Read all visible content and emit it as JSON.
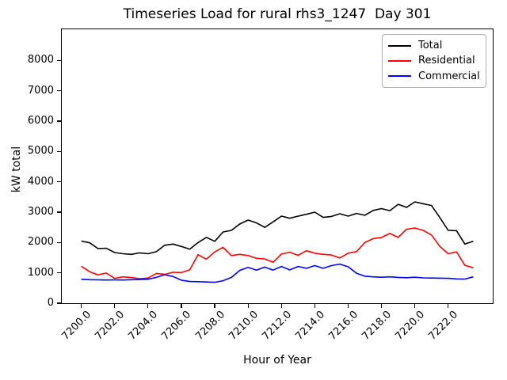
{
  "title": "Timeseries Load for rural rhs3_1247  Day 301",
  "chart_data": {
    "type": "line",
    "title": "Timeseries Load for rural rhs3_1247  Day 301",
    "x_label": "Hour of Year",
    "y_label": "kW total",
    "grid": false,
    "legend_position": "upper right",
    "xlim": [
      7198.83,
      7224.67
    ],
    "ylim": [
      0,
      9030
    ],
    "x_ticks": {
      "values": [
        7200,
        7202,
        7204,
        7206,
        7208,
        7210,
        7212,
        7214,
        7216,
        7218,
        7220,
        7222
      ],
      "labels": [
        "7200.0",
        "7202.0",
        "7204.0",
        "7206.0",
        "7208.0",
        "7210.0",
        "7212.0",
        "7214.0",
        "7216.0",
        "7218.0",
        "7220.0",
        "7222.0"
      ]
    },
    "y_ticks": {
      "values": [
        0,
        1000,
        2000,
        3000,
        4000,
        5000,
        6000,
        7000,
        8000
      ],
      "labels": [
        "0",
        "1000",
        "2000",
        "3000",
        "4000",
        "5000",
        "6000",
        "7000",
        "8000"
      ]
    },
    "x": [
      7200.0,
      7200.5,
      7201.0,
      7201.5,
      7202.0,
      7202.5,
      7203.0,
      7203.5,
      7204.0,
      7204.5,
      7205.0,
      7205.5,
      7206.0,
      7206.5,
      7207.0,
      7207.5,
      7208.0,
      7208.5,
      7209.0,
      7209.5,
      7210.0,
      7210.5,
      7211.0,
      7211.5,
      7212.0,
      7212.5,
      7213.0,
      7213.5,
      7214.0,
      7214.5,
      7215.0,
      7215.5,
      7216.0,
      7216.5,
      7217.0,
      7217.5,
      7218.0,
      7218.5,
      7219.0,
      7219.5,
      7220.0,
      7220.5,
      7221.0,
      7221.5,
      7222.0,
      7222.5,
      7223.0,
      7223.5
    ],
    "series": [
      {
        "name": "Total",
        "color": "#000000",
        "values": [
          2050,
          1990,
          1800,
          1810,
          1670,
          1630,
          1610,
          1660,
          1630,
          1700,
          1910,
          1950,
          1870,
          1780,
          2000,
          2170,
          2040,
          2350,
          2400,
          2610,
          2740,
          2650,
          2500,
          2680,
          2870,
          2800,
          2870,
          2930,
          3000,
          2830,
          2860,
          2950,
          2870,
          2960,
          2900,
          3060,
          3120,
          3050,
          3260,
          3160,
          3340,
          3280,
          3220,
          2820,
          2400,
          2390,
          1950,
          2040
        ]
      },
      {
        "name": "Residential",
        "color": "#ff0000",
        "values": [
          1220,
          1040,
          935,
          995,
          820,
          870,
          845,
          810,
          830,
          980,
          950,
          1020,
          1010,
          1100,
          1600,
          1450,
          1690,
          1840,
          1570,
          1610,
          1570,
          1480,
          1460,
          1350,
          1620,
          1680,
          1580,
          1730,
          1650,
          1610,
          1590,
          1490,
          1650,
          1700,
          2000,
          2130,
          2170,
          2300,
          2170,
          2440,
          2480,
          2400,
          2250,
          1870,
          1630,
          1690,
          1250,
          1170
        ]
      },
      {
        "name": "Commercial",
        "color": "#0000ff",
        "values": [
          790,
          775,
          770,
          765,
          770,
          765,
          775,
          780,
          790,
          850,
          940,
          880,
          760,
          715,
          710,
          700,
          690,
          740,
          850,
          1080,
          1180,
          1090,
          1190,
          1090,
          1210,
          1100,
          1210,
          1150,
          1240,
          1150,
          1240,
          1290,
          1200,
          990,
          890,
          870,
          855,
          870,
          850,
          840,
          855,
          835,
          830,
          825,
          820,
          800,
          795,
          870
        ]
      }
    ]
  }
}
